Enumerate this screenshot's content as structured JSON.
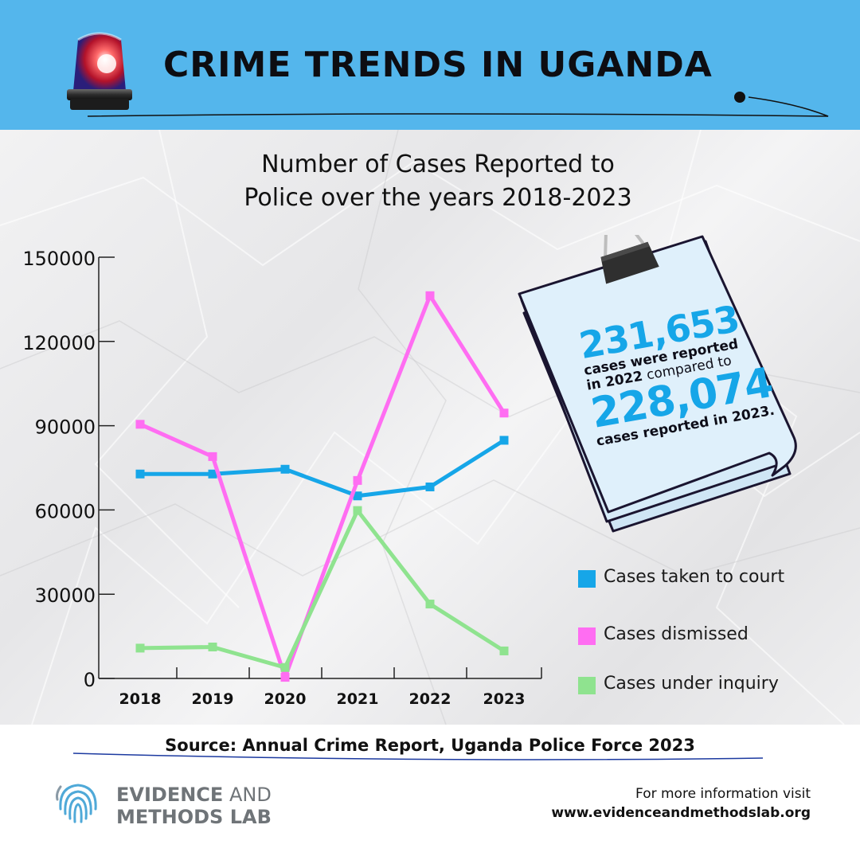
{
  "header": {
    "title": "CRIME TRENDS IN UGANDA",
    "background_color": "#54b6ec"
  },
  "chart_data": {
    "type": "line",
    "title": "Number of Cases Reported to Police over the years 2018-2023",
    "title_lines": [
      "Number of Cases Reported to",
      "Police over the years 2018-2023"
    ],
    "xlabel": "",
    "ylabel": "",
    "categories": [
      "2018",
      "2019",
      "2020",
      "2021",
      "2022",
      "2023"
    ],
    "ylim": [
      0,
      150000
    ],
    "yticks": [
      0,
      30000,
      60000,
      90000,
      120000,
      150000
    ],
    "series": [
      {
        "name": "Cases taken to court",
        "color": "#16a6e8",
        "values": [
          72800,
          72800,
          74500,
          65000,
          68200,
          84800
        ]
      },
      {
        "name": "Cases dismissed",
        "color": "#ff6df2",
        "values": [
          90500,
          79000,
          400,
          70500,
          136300,
          94500
        ]
      },
      {
        "name": "Cases under inquiry",
        "color": "#8fe38f",
        "values": [
          10800,
          11200,
          3900,
          59800,
          26500,
          9800
        ]
      }
    ],
    "grid": false,
    "legend_position": "right"
  },
  "note": {
    "value_2022": "231,653",
    "line1": "cases were reported",
    "line2_bold": "in 2022",
    "line2_light": " compared to",
    "value_2023": "228,074",
    "line3": "cases reported in 2023."
  },
  "source": "Source: Annual Crime Report, Uganda Police Force 2023",
  "footer": {
    "logo_line1_bold": "EVIDENCE",
    "logo_line1_light": " AND",
    "logo_line2": "METHODS LAB",
    "info_label": "For more information visit",
    "info_url": "www.evidenceandmethodslab.org"
  },
  "icons": [
    "siren-icon",
    "binder-clip-icon",
    "fingerprint-logo-icon"
  ]
}
